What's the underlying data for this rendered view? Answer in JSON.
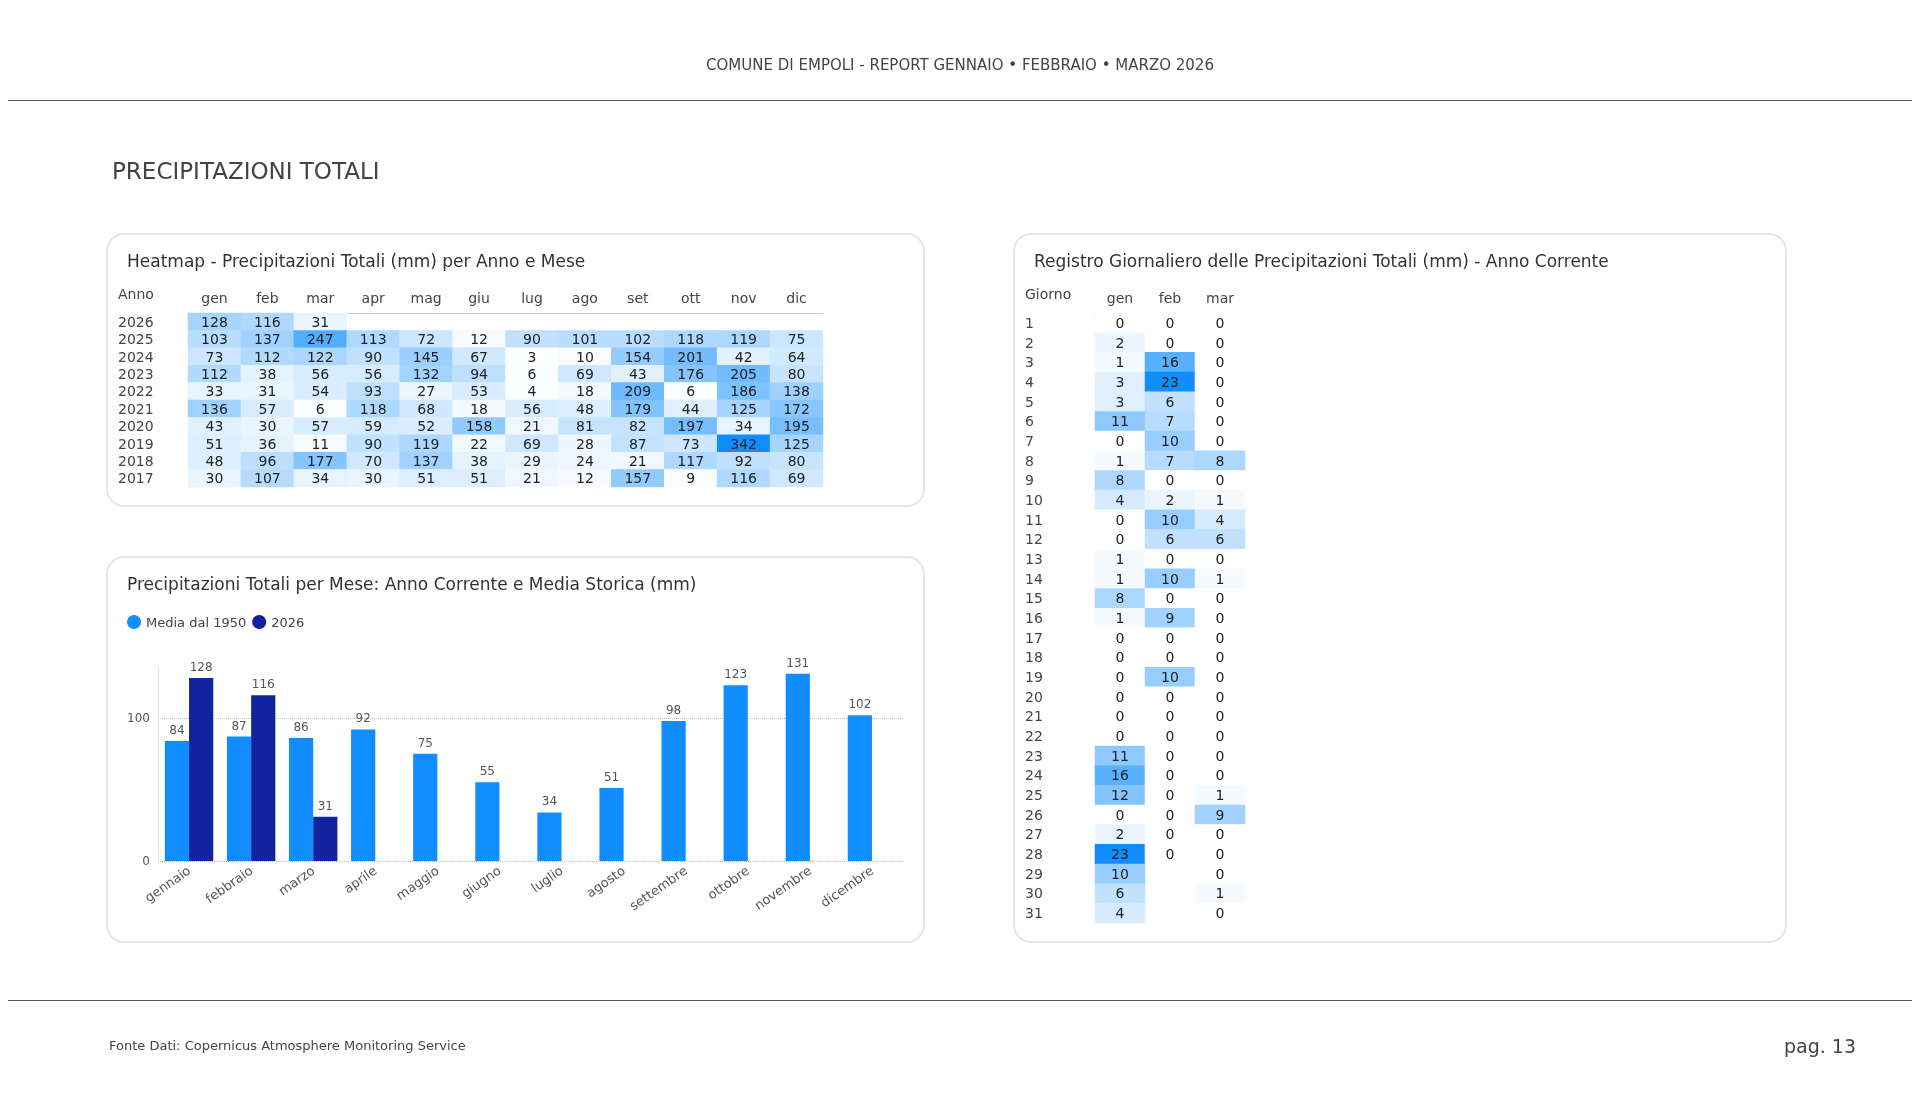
{
  "chart_data": [
    {
      "type": "heatmap",
      "title": "Heatmap - Precipitazioni Totali (mm) per Anno e Mese",
      "ylabel": "Anno",
      "data_labels": true,
      "annotations": [
        "COMUNE DI EMPOLI - REPORT GENNAIO • FEBBRAIO • MARZO 2026",
        "PRECIPITAZIONI TOTALI",
        "Fonte Dati: Copernicus Atmosphere Monitoring Service",
        "pag. 13"
      ],
      "categories": [
        "gen",
        "feb",
        "mar",
        "apr",
        "mag",
        "giu",
        "lug",
        "ago",
        "set",
        "ott",
        "nov",
        "dic"
      ],
      "y_categories": [
        "2026",
        "2025",
        "2024",
        "2023",
        "2022",
        "2021",
        "2020",
        "2019",
        "2018",
        "2017"
      ],
      "cells": [
        [
          128,
          116,
          31,
          null,
          null,
          null,
          null,
          null,
          null,
          null,
          null,
          null
        ],
        [
          103,
          137,
          247,
          113,
          72,
          12,
          90,
          101,
          102,
          118,
          119,
          75
        ],
        [
          73,
          112,
          122,
          90,
          145,
          67,
          3,
          10,
          154,
          201,
          42,
          64
        ],
        [
          112,
          38,
          56,
          56,
          132,
          94,
          6,
          69,
          43,
          176,
          205,
          80
        ],
        [
          33,
          31,
          54,
          93,
          27,
          53,
          4,
          18,
          209,
          6,
          186,
          138
        ],
        [
          136,
          57,
          6,
          118,
          68,
          18,
          56,
          48,
          179,
          44,
          125,
          172
        ],
        [
          43,
          30,
          57,
          59,
          52,
          158,
          21,
          81,
          82,
          197,
          34,
          195
        ],
        [
          51,
          36,
          11,
          90,
          119,
          22,
          69,
          28,
          87,
          73,
          342,
          125
        ],
        [
          48,
          96,
          177,
          70,
          137,
          38,
          29,
          24,
          21,
          117,
          92,
          80
        ],
        [
          30,
          107,
          34,
          30,
          51,
          51,
          21,
          12,
          157,
          9,
          116,
          69
        ]
      ]
    },
    {
      "type": "bar",
      "title": "Precipitazioni Totali per Mese: Anno Corrente e Media Storica (mm)",
      "categories": [
        "gennaio",
        "febbraio",
        "marzo",
        "aprile",
        "maggio",
        "giugno",
        "luglio",
        "agosto",
        "settembre",
        "ottobre",
        "novembre",
        "dicembre"
      ],
      "series": [
        {
          "name": "Media dal 1950",
          "color": "#118dff",
          "values": [
            84,
            87,
            86,
            92,
            75,
            55,
            34,
            51,
            98,
            123,
            131,
            102
          ]
        },
        {
          "name": "2026",
          "color": "#12239e",
          "values": [
            128,
            116,
            31,
            null,
            null,
            null,
            null,
            null,
            null,
            null,
            null,
            null
          ]
        }
      ],
      "ylim": [
        0,
        135
      ],
      "yticks": [
        0,
        100
      ],
      "grid": "y",
      "legend": "top left",
      "data_labels": true
    },
    {
      "type": "heatmap",
      "title": "Registro Giornaliero delle Precipitazioni Totali (mm) - Anno Corrente",
      "ylabel": "Giorno",
      "data_labels": true,
      "categories": [
        "gen",
        "feb",
        "mar"
      ],
      "y_categories": [
        "1",
        "2",
        "3",
        "4",
        "5",
        "6",
        "7",
        "8",
        "9",
        "10",
        "11",
        "12",
        "13",
        "14",
        "15",
        "16",
        "17",
        "18",
        "19",
        "20",
        "21",
        "22",
        "23",
        "24",
        "25",
        "26",
        "27",
        "28",
        "29",
        "30",
        "31"
      ],
      "cells": [
        [
          0,
          0,
          0
        ],
        [
          2,
          0,
          0
        ],
        [
          1,
          16,
          0
        ],
        [
          3,
          23,
          0
        ],
        [
          3,
          6,
          0
        ],
        [
          11,
          7,
          0
        ],
        [
          0,
          10,
          0
        ],
        [
          1,
          7,
          8
        ],
        [
          8,
          0,
          0
        ],
        [
          4,
          2,
          1
        ],
        [
          0,
          10,
          4
        ],
        [
          0,
          6,
          6
        ],
        [
          1,
          0,
          0
        ],
        [
          1,
          10,
          1
        ],
        [
          8,
          0,
          0
        ],
        [
          1,
          9,
          0
        ],
        [
          0,
          0,
          0
        ],
        [
          0,
          0,
          0
        ],
        [
          0,
          10,
          0
        ],
        [
          0,
          0,
          0
        ],
        [
          0,
          0,
          0
        ],
        [
          0,
          0,
          0
        ],
        [
          11,
          0,
          0
        ],
        [
          16,
          0,
          0
        ],
        [
          12,
          0,
          1
        ],
        [
          0,
          0,
          9
        ],
        [
          2,
          0,
          0
        ],
        [
          23,
          0,
          0
        ],
        [
          10,
          null,
          0
        ],
        [
          6,
          null,
          1
        ],
        [
          4,
          null,
          0
        ]
      ]
    }
  ]
}
